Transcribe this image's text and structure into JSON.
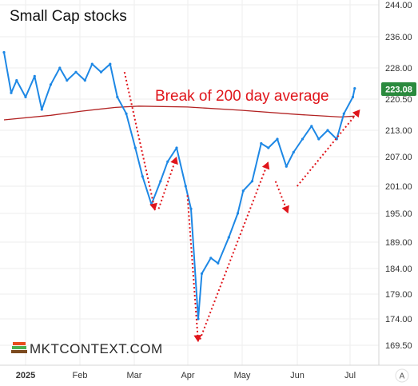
{
  "chart_data": {
    "type": "line",
    "title": "Small Cap stocks",
    "annotation": "Break of 200 day average",
    "brand": "MKTCONTEXT.COM",
    "x_ticks": [
      "2025",
      "Feb",
      "Mar",
      "Apr",
      "May",
      "Jun",
      "Jul"
    ],
    "y_ticks": [
      "244.00",
      "236.00",
      "228.00",
      "220.50",
      "213.00",
      "207.00",
      "201.00",
      "195.00",
      "189.00",
      "184.00",
      "179.00",
      "174.00",
      "169.50"
    ],
    "last_price": "223.08",
    "auto_scale_label": "A",
    "series": [
      {
        "name": "",
        "color": "#1e88e5",
        "x": [
          "2024-12-20",
          "2024-12-24",
          "2024-12-27",
          "2025-01-01",
          "2025-01-06",
          "2025-01-10",
          "2025-01-15",
          "2025-01-20",
          "2025-01-24",
          "2025-01-29",
          "2025-02-03",
          "2025-02-07",
          "2025-02-12",
          "2025-02-17",
          "2025-02-21",
          "2025-02-26",
          "2025-03-03",
          "2025-03-07",
          "2025-03-12",
          "2025-03-17",
          "2025-03-21",
          "2025-03-26",
          "2025-03-31",
          "2025-04-03",
          "2025-04-07",
          "2025-04-09",
          "2025-04-14",
          "2025-04-18",
          "2025-04-24",
          "2025-04-29",
          "2025-05-02",
          "2025-05-07",
          "2025-05-12",
          "2025-05-16",
          "2025-05-21",
          "2025-05-26",
          "2025-05-30",
          "2025-06-04",
          "2025-06-09",
          "2025-06-13",
          "2025-06-18",
          "2025-06-23",
          "2025-06-27",
          "2025-07-02",
          "2025-07-03"
        ],
        "values": [
          232,
          222,
          225,
          221,
          226,
          218,
          224,
          228,
          225,
          227,
          225,
          229,
          227,
          229,
          221,
          217,
          209,
          203,
          197,
          202,
          206,
          209,
          201,
          196,
          174,
          183,
          186,
          185,
          190,
          195,
          200,
          202,
          210,
          209,
          211,
          205,
          208,
          211,
          214,
          211,
          213,
          211,
          217,
          221,
          223.08
        ]
      },
      {
        "name": "",
        "color": "#b22222",
        "x": [
          "2024-12-20",
          "2025-01-15",
          "2025-02-01",
          "2025-02-20",
          "2025-03-05",
          "2025-04-01",
          "2025-05-01",
          "2025-06-01",
          "2025-06-25",
          "2025-07-03"
        ],
        "values": [
          215.5,
          216.6,
          217.6,
          218.5,
          218.8,
          218.6,
          217.8,
          216.8,
          216.2,
          216.4
        ]
      }
    ],
    "annotation_arrows": [
      {
        "from": [
          "2025-02-25",
          227
        ],
        "to": [
          "2025-03-14",
          195.6
        ]
      },
      {
        "from": [
          "2025-03-16",
          196
        ],
        "to": [
          "2025-03-26",
          207
        ]
      },
      {
        "from": [
          "2025-04-01",
          199
        ],
        "to": [
          "2025-04-07",
          170
        ]
      },
      {
        "from": [
          "2025-04-08",
          170.5
        ],
        "to": [
          "2025-05-16",
          206
        ]
      },
      {
        "from": [
          "2025-05-20",
          202
        ],
        "to": [
          "2025-05-27",
          195
        ]
      },
      {
        "from": [
          "2025-06-01",
          201
        ],
        "to": [
          "2025-07-06",
          218
        ]
      }
    ],
    "colors": {
      "price": "#1e88e5",
      "ma200": "#b22222",
      "annotation": "#e0151b",
      "grid": "#eeeeee"
    },
    "grid": true
  }
}
